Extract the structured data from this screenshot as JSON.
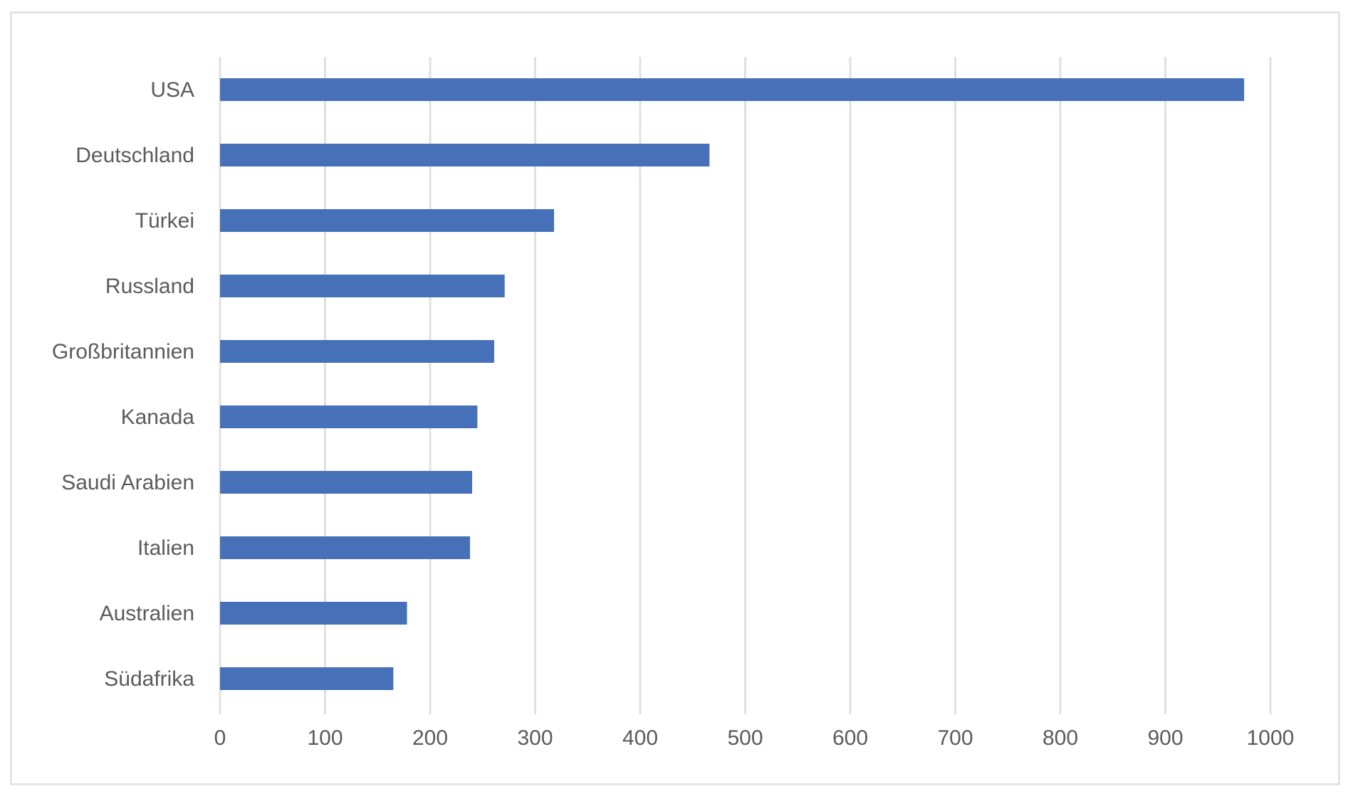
{
  "chart_data": {
    "type": "bar",
    "orientation": "horizontal",
    "categories": [
      "USA",
      "Deutschland",
      "Türkei",
      "Russland",
      "Großbritannien",
      "Kanada",
      "Saudi Arabien",
      "Italien",
      "Australien",
      "Südafrika"
    ],
    "values": [
      975,
      466,
      318,
      271,
      261,
      245,
      240,
      238,
      178,
      165
    ],
    "xlim": [
      0,
      1000
    ],
    "xticks": [
      0,
      100,
      200,
      300,
      400,
      500,
      600,
      700,
      800,
      900,
      1000
    ],
    "grid": "vertical",
    "legend": "none",
    "bar_color": "#4671b8",
    "grid_color": "#e0e0e0",
    "text_color": "#5b5b5b"
  }
}
